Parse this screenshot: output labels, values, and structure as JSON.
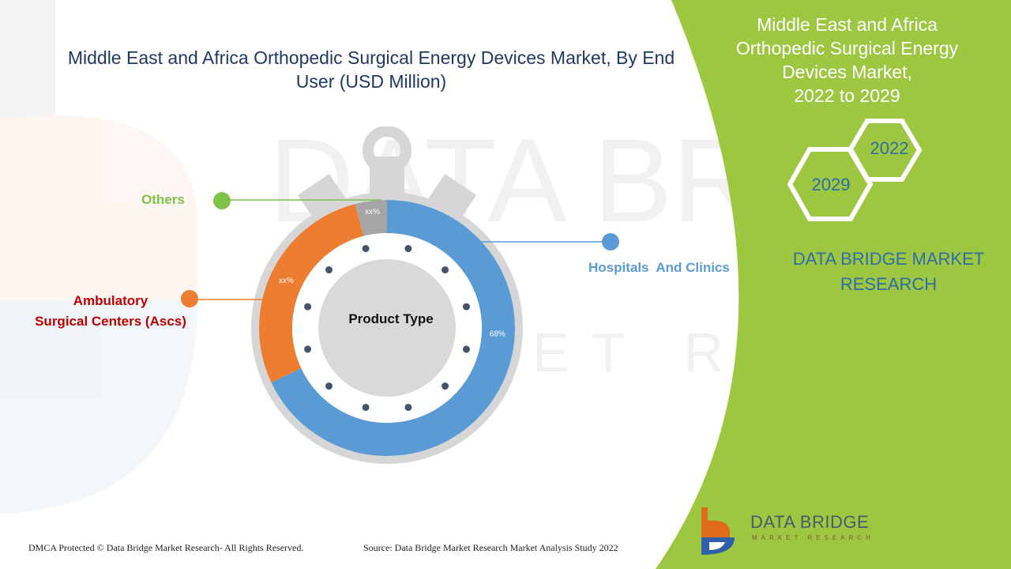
{
  "chart_data": {
    "type": "pie",
    "variant": "donut",
    "title": "Middle East and Africa Orthopedic Surgical Energy Devices Market, By End User (USD Million)",
    "center_label": "Product Type",
    "series": [
      {
        "name": "Hospitals And Clinics",
        "value": 68,
        "label": "68%",
        "color": "#5b9bd5"
      },
      {
        "name": "Ambulatory Surgical Centers (Ascs)",
        "value": 28,
        "label": "xx%",
        "color": "#ed7d31"
      },
      {
        "name": "Others",
        "value": 4,
        "label": "xx%",
        "color": "#a5a5a5"
      }
    ],
    "legend_placement": "callouts"
  },
  "labels": {
    "others": "Others",
    "hospitals": "Hospitals  And Clinics",
    "ambulatory_line1": "Ambulatory",
    "ambulatory_line2": "Surgical Centers (Ascs)"
  },
  "side_panel": {
    "title_line1": "Middle East and Africa",
    "title_line2": "Orthopedic Surgical Energy",
    "title_line3": "Devices Market,",
    "title_line4": "2022 to 2029",
    "year_start": "2022",
    "year_end": "2029",
    "brand_line1": "DATA BRIDGE MARKET",
    "brand_line2": "RESEARCH"
  },
  "footer": {
    "copyright": "DMCA Protected © Data Bridge Market Research- All Rights Reserved.",
    "source": "Source: Data Bridge Market Research Market Analysis Study 2022"
  },
  "logo": {
    "name": "DATA BRIDGE",
    "tagline": "MARKET RESEARCH"
  },
  "watermark": {
    "line1": "DATA BRIDGE",
    "line2": "MARKET RESEARCH"
  },
  "colors": {
    "green_panel": "#9dc641",
    "title_blue": "#1f3864",
    "others_green": "#7ec24a",
    "ambulatory_red": "#c00000",
    "hospitals_blue": "#5b9bd5",
    "brand_blue": "#2e6ea6",
    "dot": "#44546a"
  }
}
